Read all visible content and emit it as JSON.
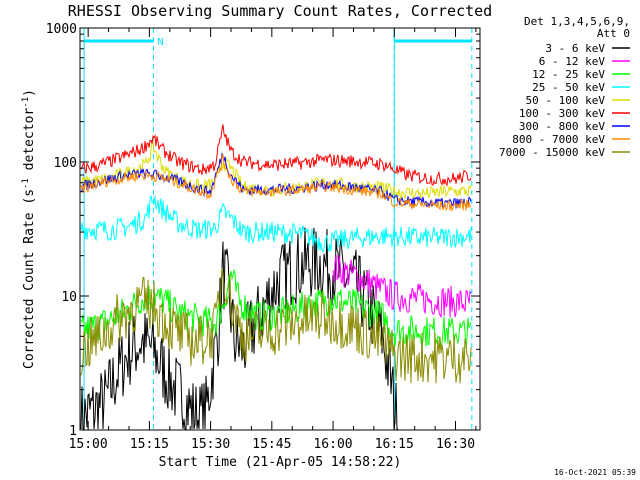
{
  "chart_data": {
    "type": "line",
    "title": "RHESSI Observing Summary Count Rates, Corrected",
    "xlabel": "Start Time (21-Apr-05 14:58:22)",
    "ylabel_main": "Corrected Count Rate (s",
    "ylabel_sup1": "-1",
    "ylabel_mid": " detector",
    "ylabel_sup2": "-1",
    "ylabel_end": ")",
    "y_scale": "log",
    "ylim": [
      1,
      1000
    ],
    "xlim": [
      "14:58",
      "16:36"
    ],
    "x_ticks": [
      "15:00",
      "15:15",
      "15:30",
      "15:45",
      "16:00",
      "16:15",
      "16:30"
    ],
    "y_ticks": [
      "1",
      "10",
      "100",
      "1000"
    ],
    "legend_header": [
      "Det 1,3,4,5,6,9,",
      "Att 0"
    ],
    "legend_position": "top-right",
    "footer_date": "16-Oct-2021 05:39",
    "flag_label": "N",
    "flag_bars": [
      [
        "14:59",
        "15:16"
      ],
      [
        "16:15",
        "16:34"
      ]
    ],
    "flag_color": "#00e5ff",
    "vertical_markers": [
      "15:16",
      "16:15",
      "16:34"
    ],
    "night_edges": [
      "14:59",
      "16:15"
    ],
    "series": [
      {
        "name": "3 - 6 keV",
        "color": "#000000",
        "x": [
          "14:58",
          "15:04",
          "15:07",
          "15:10",
          "15:13",
          "15:16",
          "15:18",
          "15:21",
          "15:24",
          "15:27",
          "15:29",
          "15:32",
          "15:33",
          "15:34",
          "15:36",
          "15:38",
          "15:40",
          "15:42",
          "15:45",
          "15:48",
          "15:51",
          "15:54",
          "15:57",
          "16:00",
          "16:03",
          "16:06",
          "16:09",
          "16:12",
          "16:14",
          "16:16"
        ],
        "y": [
          1.2,
          1.6,
          2.6,
          3.8,
          4.6,
          4.0,
          3.0,
          2.1,
          1.6,
          1.2,
          1.4,
          6.0,
          15.5,
          12.0,
          4.5,
          4.0,
          5.5,
          7.0,
          11.0,
          14.5,
          16.5,
          17.5,
          17.5,
          16.0,
          14.0,
          11.5,
          8.0,
          5.0,
          2.5,
          1.0
        ],
        "noise": 0.28
      },
      {
        "name": "6 - 12 keV",
        "color": "#ff00ff",
        "x": [
          "16:00",
          "16:03",
          "16:06",
          "16:09",
          "16:12",
          "16:15",
          "16:20",
          "16:25",
          "16:30",
          "16:34"
        ],
        "y": [
          16.5,
          15.0,
          14.0,
          12.5,
          11.0,
          10.0,
          9.6,
          9.3,
          9.0,
          8.8
        ],
        "noise": 0.12
      },
      {
        "name": "12 - 25 keV",
        "color": "#00ff00",
        "x": [
          "14:58",
          "15:02",
          "15:06",
          "15:10",
          "15:13",
          "15:16",
          "15:19",
          "15:22",
          "15:25",
          "15:28",
          "15:31",
          "15:33",
          "15:35",
          "15:37",
          "15:42",
          "15:48",
          "15:54",
          "16:00",
          "16:06",
          "16:12",
          "16:15",
          "16:20",
          "16:25",
          "16:30",
          "16:34"
        ],
        "y": [
          5.5,
          6.0,
          6.8,
          8.0,
          9.5,
          10.0,
          9.0,
          7.5,
          7.0,
          6.5,
          6.3,
          8.5,
          15.0,
          9.0,
          7.0,
          7.5,
          8.5,
          9.5,
          8.5,
          7.0,
          5.5,
          5.5,
          5.4,
          5.4,
          5.3
        ],
        "noise": 0.12
      },
      {
        "name": "25 - 50 keV",
        "color": "#00ffff",
        "x": [
          "14:58",
          "15:05",
          "15:10",
          "15:14",
          "15:16",
          "15:18",
          "15:22",
          "15:27",
          "15:31",
          "15:33",
          "15:35",
          "15:38",
          "15:45",
          "15:52",
          "15:58",
          "16:05",
          "16:12",
          "16:15",
          "16:22",
          "16:28",
          "16:34"
        ],
        "y": [
          32,
          31,
          33,
          38,
          55,
          45,
          35,
          31,
          32,
          42,
          38,
          30,
          30,
          29,
          25,
          27,
          28,
          28,
          27,
          27.5,
          28
        ],
        "noise": 0.08
      },
      {
        "name": "50 - 100 keV",
        "color": "#dddd00",
        "x": [
          "14:58",
          "15:05",
          "15:10",
          "15:14",
          "15:16",
          "15:17",
          "15:19",
          "15:23",
          "15:28",
          "15:31",
          "15:33",
          "15:35",
          "15:38",
          "15:45",
          "15:52",
          "15:58",
          "16:05",
          "16:12",
          "16:15",
          "16:22",
          "16:28",
          "16:34"
        ],
        "y": [
          70,
          75,
          85,
          95,
          130,
          110,
          85,
          72,
          65,
          70,
          100,
          90,
          65,
          62,
          65,
          70,
          66,
          64,
          60,
          58,
          60,
          61
        ],
        "noise": 0.05
      },
      {
        "name": "100 - 300 keV",
        "color": "#ff0000",
        "x": [
          "14:58",
          "15:03",
          "15:08",
          "15:13",
          "15:16",
          "15:18",
          "15:22",
          "15:28",
          "15:31",
          "15:33",
          "15:35",
          "15:38",
          "15:45",
          "15:52",
          "15:58",
          "16:03",
          "16:08",
          "16:13",
          "16:15",
          "16:18",
          "16:24",
          "16:30",
          "16:34"
        ],
        "y": [
          88,
          95,
          108,
          125,
          150,
          125,
          100,
          87,
          95,
          175,
          120,
          100,
          95,
          98,
          104,
          102,
          100,
          95,
          88,
          80,
          75,
          75,
          80
        ],
        "noise": 0.05
      },
      {
        "name": "300 - 800 keV",
        "color": "#0000ff",
        "x": [
          "14:58",
          "15:03",
          "15:08",
          "15:13",
          "15:17",
          "15:22",
          "15:27",
          "15:30",
          "15:33",
          "15:35",
          "15:38",
          "15:45",
          "15:52",
          "15:58",
          "16:05",
          "16:12",
          "16:15",
          "16:22",
          "16:28",
          "16:34"
        ],
        "y": [
          65,
          72,
          78,
          82,
          80,
          72,
          63,
          60,
          115,
          80,
          62,
          62,
          64,
          68,
          65,
          60,
          52,
          50,
          49,
          50
        ],
        "noise": 0.04
      },
      {
        "name": "800 - 7000 keV",
        "color": "#ff8800",
        "x": [
          "14:58",
          "15:03",
          "15:08",
          "15:13",
          "15:17",
          "15:22",
          "15:27",
          "15:30",
          "15:33",
          "15:35",
          "15:38",
          "15:45",
          "15:52",
          "15:58",
          "16:05",
          "16:12",
          "16:15",
          "16:22",
          "16:28",
          "16:34"
        ],
        "y": [
          62,
          70,
          75,
          80,
          78,
          70,
          61,
          58,
          105,
          75,
          60,
          60,
          62,
          66,
          62,
          58,
          50,
          48,
          47,
          48
        ],
        "noise": 0.04
      },
      {
        "name": "7000 - 15000 keV",
        "color": "#8b8b00",
        "x": [
          "14:58",
          "15:03",
          "15:08",
          "15:13",
          "15:16",
          "15:19",
          "15:23",
          "15:27",
          "15:31",
          "15:33",
          "15:35",
          "15:38",
          "15:45",
          "15:52",
          "15:58",
          "16:05",
          "16:12",
          "16:15",
          "16:20",
          "16:26",
          "16:34"
        ],
        "y": [
          3.8,
          5.0,
          7.0,
          9.0,
          8.5,
          6.5,
          5.0,
          4.5,
          5.5,
          17.0,
          9.0,
          5.0,
          5.5,
          6.5,
          7.0,
          6.0,
          4.5,
          3.6,
          3.5,
          3.5,
          3.5
        ],
        "noise": 0.2
      }
    ]
  }
}
